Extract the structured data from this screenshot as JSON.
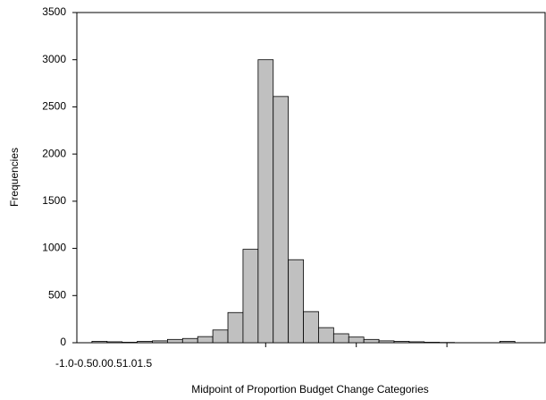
{
  "chart_data": {
    "type": "bar",
    "x_label": "Midpoint of Proportion Budget Change Categories",
    "y_label": "Frequencies",
    "x_labels": [
      "-1.0",
      "-0.5",
      "0.0",
      "0.5",
      "1.0",
      "1.5"
    ],
    "categories": [
      null,
      null,
      null,
      null,
      null,
      null,
      null,
      null,
      null,
      null,
      null,
      null,
      null,
      null,
      null,
      null,
      null,
      null,
      null,
      null,
      null,
      null,
      null,
      null,
      null,
      null,
      null,
      null,
      null,
      null,
      null
    ],
    "values": [
      0,
      15,
      10,
      5,
      15,
      20,
      35,
      45,
      65,
      135,
      320,
      990,
      3000,
      2610,
      880,
      330,
      160,
      95,
      60,
      35,
      20,
      15,
      10,
      5,
      3,
      0,
      0,
      0,
      15,
      0,
      0
    ],
    "color": "#c0c0c0",
    "ylim": [
      0,
      3500
    ],
    "yticks": [
      0,
      500,
      1000,
      1500,
      2000,
      2500,
      3000,
      3500
    ]
  }
}
